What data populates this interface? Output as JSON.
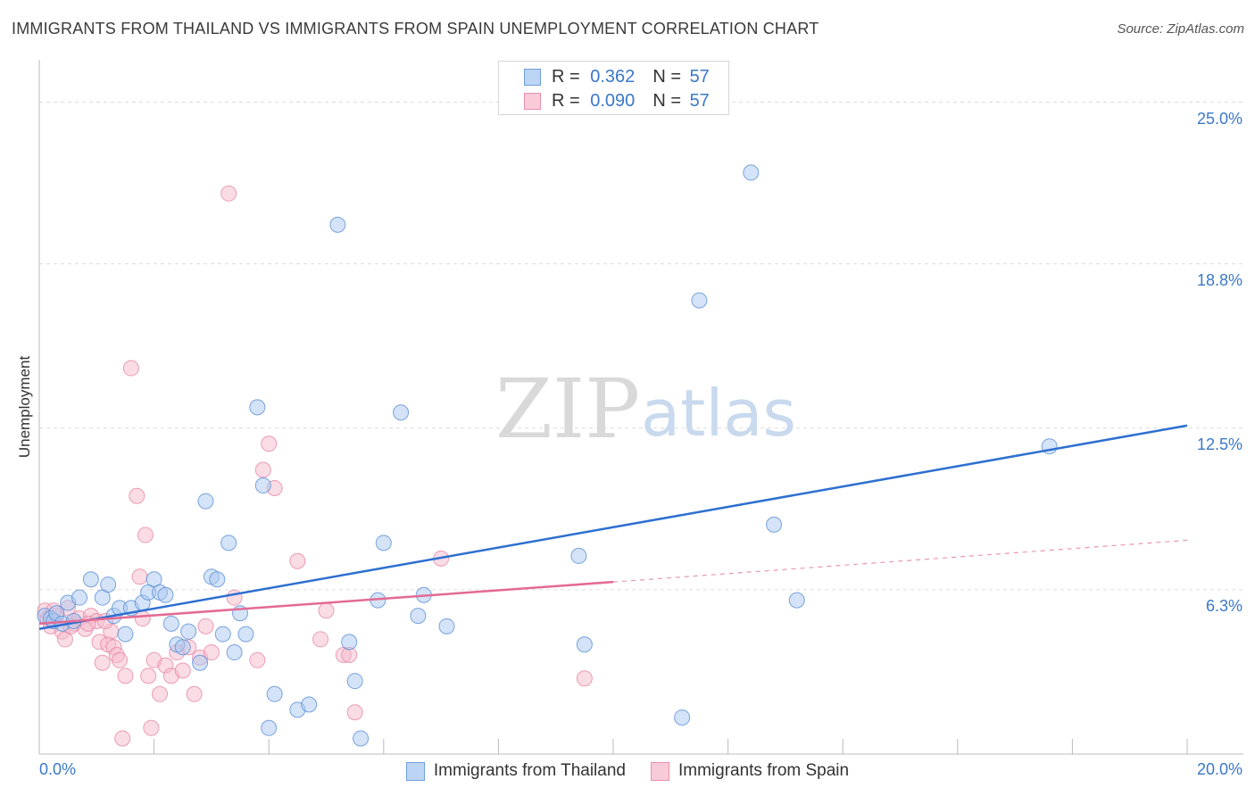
{
  "header": {
    "title": "IMMIGRANTS FROM THAILAND VS IMMIGRANTS FROM SPAIN UNEMPLOYMENT CORRELATION CHART",
    "source": "Source: ZipAtlas.com"
  },
  "watermark": {
    "zip": "ZIP",
    "atlas": "atlas"
  },
  "colors": {
    "thailand_fill": "#a9c8f0",
    "thailand_stroke": "#5b8fd6",
    "thailand_line": "#2d6fd0",
    "spain_fill": "#f6b9cc",
    "spain_stroke": "#e787a6",
    "spain_line": "#e36a94",
    "accent_text": "#3a78c9",
    "grid": "#dcdcdc"
  },
  "legend_top": {
    "rows": [
      {
        "r_label": "R =",
        "r_value": "0.362",
        "n_label": "N =",
        "n_value": "57"
      },
      {
        "r_label": "R =",
        "r_value": "0.090",
        "n_label": "N =",
        "n_value": "57"
      }
    ]
  },
  "legend_bottom": {
    "items": [
      "Immigrants from Thailand",
      "Immigrants from Spain"
    ]
  },
  "chart_data": {
    "type": "scatter",
    "title": "IMMIGRANTS FROM THAILAND VS IMMIGRANTS FROM SPAIN UNEMPLOYMENT CORRELATION CHART",
    "xlabel": "",
    "ylabel": "Unemployment",
    "xlim": [
      0,
      20
    ],
    "ylim": [
      0,
      26.25
    ],
    "x_tick_labels": [
      "0.0%",
      "20.0%"
    ],
    "y_ticks": [
      6.3,
      12.5,
      18.8,
      25.0
    ],
    "y_tick_labels": [
      "6.3%",
      "12.5%",
      "18.8%",
      "25.0%"
    ],
    "grid": true,
    "legend_position": "top-center",
    "series": [
      {
        "name": "Immigrants from Thailand",
        "r": 0.362,
        "n": 57,
        "trend": {
          "x": [
            0,
            20
          ],
          "y": [
            4.8,
            12.6
          ],
          "dashed_from": null
        },
        "points": [
          [
            0.1,
            5.3
          ],
          [
            0.2,
            5.2
          ],
          [
            0.25,
            5.1
          ],
          [
            0.3,
            5.4
          ],
          [
            0.4,
            5.0
          ],
          [
            0.5,
            5.8
          ],
          [
            0.6,
            5.1
          ],
          [
            0.7,
            6.0
          ],
          [
            0.9,
            6.7
          ],
          [
            1.1,
            6.0
          ],
          [
            1.2,
            6.5
          ],
          [
            1.3,
            5.3
          ],
          [
            1.4,
            5.6
          ],
          [
            1.5,
            4.6
          ],
          [
            1.6,
            5.6
          ],
          [
            1.8,
            5.8
          ],
          [
            1.9,
            6.2
          ],
          [
            2.0,
            6.7
          ],
          [
            2.1,
            6.2
          ],
          [
            2.2,
            6.1
          ],
          [
            2.3,
            5.0
          ],
          [
            2.4,
            4.2
          ],
          [
            2.5,
            4.1
          ],
          [
            2.6,
            4.7
          ],
          [
            2.8,
            3.5
          ],
          [
            2.9,
            9.7
          ],
          [
            3.0,
            6.8
          ],
          [
            3.1,
            6.7
          ],
          [
            3.2,
            4.6
          ],
          [
            3.3,
            8.1
          ],
          [
            3.4,
            3.9
          ],
          [
            3.5,
            5.4
          ],
          [
            3.6,
            4.6
          ],
          [
            3.8,
            13.3
          ],
          [
            3.9,
            10.3
          ],
          [
            4.0,
            1.0
          ],
          [
            4.1,
            2.3
          ],
          [
            4.5,
            1.7
          ],
          [
            4.7,
            1.9
          ],
          [
            5.2,
            20.3
          ],
          [
            5.4,
            4.3
          ],
          [
            5.5,
            2.8
          ],
          [
            5.6,
            0.6
          ],
          [
            5.9,
            5.9
          ],
          [
            6.0,
            8.1
          ],
          [
            6.3,
            13.1
          ],
          [
            6.6,
            5.3
          ],
          [
            6.7,
            6.1
          ],
          [
            7.1,
            4.9
          ],
          [
            9.4,
            7.6
          ],
          [
            9.5,
            4.2
          ],
          [
            11.2,
            1.4
          ],
          [
            11.5,
            17.4
          ],
          [
            12.4,
            22.3
          ],
          [
            12.8,
            8.8
          ],
          [
            13.2,
            5.9
          ],
          [
            17.6,
            11.8
          ]
        ]
      },
      {
        "name": "Immigrants from Spain",
        "r": 0.09,
        "n": 57,
        "trend": {
          "x": [
            0,
            20
          ],
          "y": [
            5.0,
            8.2
          ],
          "dashed_from": 10
        },
        "points": [
          [
            0.1,
            5.5
          ],
          [
            0.15,
            5.2
          ],
          [
            0.2,
            4.9
          ],
          [
            0.3,
            5.3
          ],
          [
            0.4,
            4.7
          ],
          [
            0.45,
            4.4
          ],
          [
            0.5,
            5.6
          ],
          [
            0.6,
            5.0
          ],
          [
            0.7,
            5.2
          ],
          [
            0.8,
            4.8
          ],
          [
            0.9,
            5.3
          ],
          [
            1.0,
            5.1
          ],
          [
            1.05,
            4.3
          ],
          [
            1.1,
            3.5
          ],
          [
            1.2,
            4.2
          ],
          [
            1.25,
            4.7
          ],
          [
            1.3,
            4.1
          ],
          [
            1.35,
            3.8
          ],
          [
            1.4,
            3.6
          ],
          [
            1.5,
            3.0
          ],
          [
            1.6,
            14.8
          ],
          [
            1.7,
            9.9
          ],
          [
            1.75,
            6.8
          ],
          [
            1.8,
            5.2
          ],
          [
            1.85,
            8.4
          ],
          [
            1.9,
            3.0
          ],
          [
            1.95,
            1.0
          ],
          [
            2.0,
            3.6
          ],
          [
            2.1,
            2.3
          ],
          [
            2.2,
            3.4
          ],
          [
            2.3,
            3.0
          ],
          [
            2.4,
            3.9
          ],
          [
            2.5,
            3.2
          ],
          [
            2.6,
            4.1
          ],
          [
            2.7,
            2.3
          ],
          [
            2.8,
            3.7
          ],
          [
            2.9,
            4.9
          ],
          [
            3.0,
            3.9
          ],
          [
            3.4,
            6.0
          ],
          [
            3.8,
            3.6
          ],
          [
            3.9,
            10.9
          ],
          [
            4.0,
            11.9
          ],
          [
            4.1,
            10.2
          ],
          [
            4.5,
            7.4
          ],
          [
            4.9,
            4.4
          ],
          [
            5.0,
            5.5
          ],
          [
            5.3,
            3.8
          ],
          [
            5.4,
            3.8
          ],
          [
            5.5,
            1.6
          ],
          [
            7.0,
            7.5
          ],
          [
            9.5,
            2.9
          ],
          [
            1.45,
            0.6
          ],
          [
            3.3,
            21.5
          ],
          [
            0.25,
            5.5
          ],
          [
            0.55,
            4.9
          ],
          [
            0.85,
            5.0
          ],
          [
            1.15,
            5.1
          ]
        ]
      }
    ]
  }
}
